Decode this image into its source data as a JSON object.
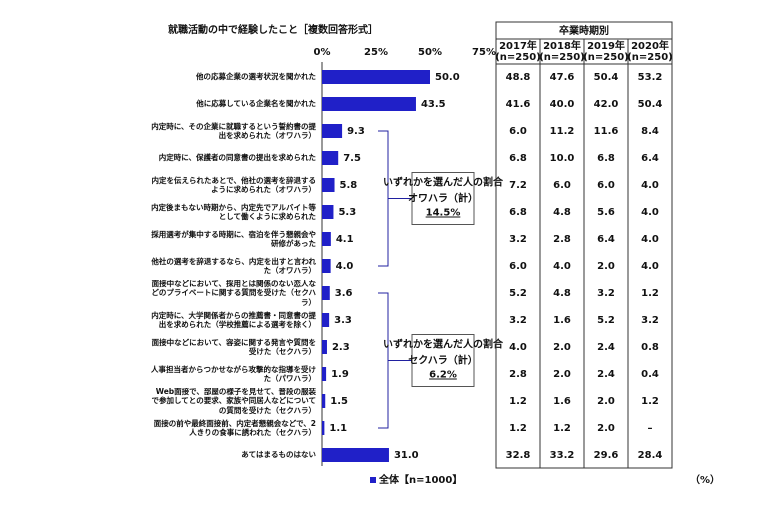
{
  "chart_data": {
    "type": "bar",
    "orientation": "horizontal",
    "title": "就職活動の中で経験したこと［複数回答形式］",
    "categories": [
      "他の応募企業の選考状況を聞かれた",
      "他に応募している企業名を聞かれた",
      "内定時に、その企業に就職するという誓約書の提出を求められた（オワハラ）",
      "内定時に、保護者の同意書の提出を求められた",
      "内定を伝えられたあとで、他社の選考を辞退するように求められた（オワハラ）",
      "内定後まもない時期から、内定先でアルバイト等として働くように求められた",
      "採用選考が集中する時期に、宿泊を伴う懇親会や研修があった",
      "他社の選考を辞退するなら、内定を出すと言われた（オワハラ）",
      "面接中などにおいて、採用とは関係のない恋人などのプライベートに関する質問を受けた（セクハラ）",
      "内定時に、大学関係者からの推薦書・同意書の提出を求められた（学校推薦による選考を除く）",
      "面接中などにおいて、容姿に関する発言や質問を受けた（セクハラ）",
      "人事担当者からつかせながら攻撃的な指導を受けた（パワハラ）",
      "Web面接で、部屋の様子を見せて、普段の服装で参加してとの要求、家族や同居人などについての質問を受けた（セクハラ）",
      "面接の前や最終面接前、内定者懇親会などで、2人きりの食事に誘われた（セクハラ）",
      "あてはまるものはない"
    ],
    "series": [
      {
        "name": "全体【n=1000】",
        "color": "#2020c8",
        "values": [
          50.0,
          43.5,
          9.3,
          7.5,
          5.8,
          5.3,
          4.1,
          4.0,
          3.6,
          3.3,
          2.3,
          1.9,
          1.5,
          1.1,
          31.0
        ],
        "value_labels": [
          "50.0",
          "43.5",
          "9.3",
          "7.5",
          "5.8",
          "5.3",
          "4.1",
          "4.0",
          "3.6",
          "3.3",
          "2.3",
          "1.9",
          "1.5",
          "1.1",
          "31.0"
        ]
      }
    ],
    "xlim": [
      0,
      75
    ],
    "xticks": [
      {
        "value": 0,
        "label": "0%"
      },
      {
        "value": 25,
        "label": "25%"
      },
      {
        "value": 50,
        "label": "50%"
      },
      {
        "value": 75,
        "label": "75%"
      }
    ],
    "grid": false,
    "annotations": [
      {
        "text": "いずれかを選んだ人の割合",
        "label": "オワハラ（計）",
        "value_label": "14.5%"
      },
      {
        "text": "いずれかを選んだ人の割合",
        "label": "セクハラ（計）",
        "value_label": "6.2%"
      }
    ]
  },
  "table": {
    "header": "卒業時期別",
    "unit": "（%）",
    "columns": [
      {
        "year": "2017年",
        "n": "(n=250)"
      },
      {
        "year": "2018年",
        "n": "(n=250)"
      },
      {
        "year": "2019年",
        "n": "(n=250)"
      },
      {
        "year": "2020年",
        "n": "(n=250)"
      }
    ],
    "rows": [
      [
        "48.8",
        "47.6",
        "50.4",
        "53.2"
      ],
      [
        "41.6",
        "40.0",
        "42.0",
        "50.4"
      ],
      [
        "6.0",
        "11.2",
        "11.6",
        "8.4"
      ],
      [
        "6.8",
        "10.0",
        "6.8",
        "6.4"
      ],
      [
        "7.2",
        "6.0",
        "6.0",
        "4.0"
      ],
      [
        "6.8",
        "4.8",
        "5.6",
        "4.0"
      ],
      [
        "3.2",
        "2.8",
        "6.4",
        "4.0"
      ],
      [
        "6.0",
        "4.0",
        "2.0",
        "4.0"
      ],
      [
        "5.2",
        "4.8",
        "3.2",
        "1.2"
      ],
      [
        "3.2",
        "1.6",
        "5.2",
        "3.2"
      ],
      [
        "4.0",
        "2.0",
        "2.4",
        "0.8"
      ],
      [
        "2.8",
        "2.0",
        "2.4",
        "0.4"
      ],
      [
        "1.2",
        "1.6",
        "2.0",
        "1.2"
      ],
      [
        "1.2",
        "1.2",
        "2.0",
        "–"
      ],
      [
        "32.8",
        "33.2",
        "29.6",
        "28.4"
      ]
    ]
  }
}
